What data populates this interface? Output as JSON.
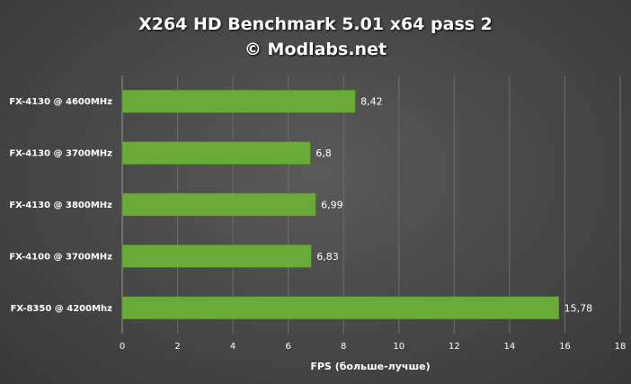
{
  "chart_data": {
    "type": "bar",
    "orientation": "horizontal",
    "title": "X264 HD Benchmark 5.01 x64 pass 2",
    "subtitle": "© Modlabs.net",
    "xlabel": "FPS (больше-лучше)",
    "categories": [
      "FX-4130 @ 4600MHz",
      "FX-4130 @ 3700MHz",
      "FX-4130 @ 3800MHz",
      "FX-4100 @ 3700MHz",
      "FX-8350 @ 4200Mhz"
    ],
    "values": [
      8.42,
      6.8,
      6.99,
      6.83,
      15.78
    ],
    "value_labels": [
      "8,42",
      "6,8",
      "6,99",
      "6,83",
      "15,78"
    ],
    "xlim": [
      0,
      18
    ],
    "xticks": [
      0,
      2,
      4,
      6,
      8,
      10,
      12,
      14,
      16,
      18
    ],
    "grid": true,
    "bar_color": "#6aaa38"
  }
}
